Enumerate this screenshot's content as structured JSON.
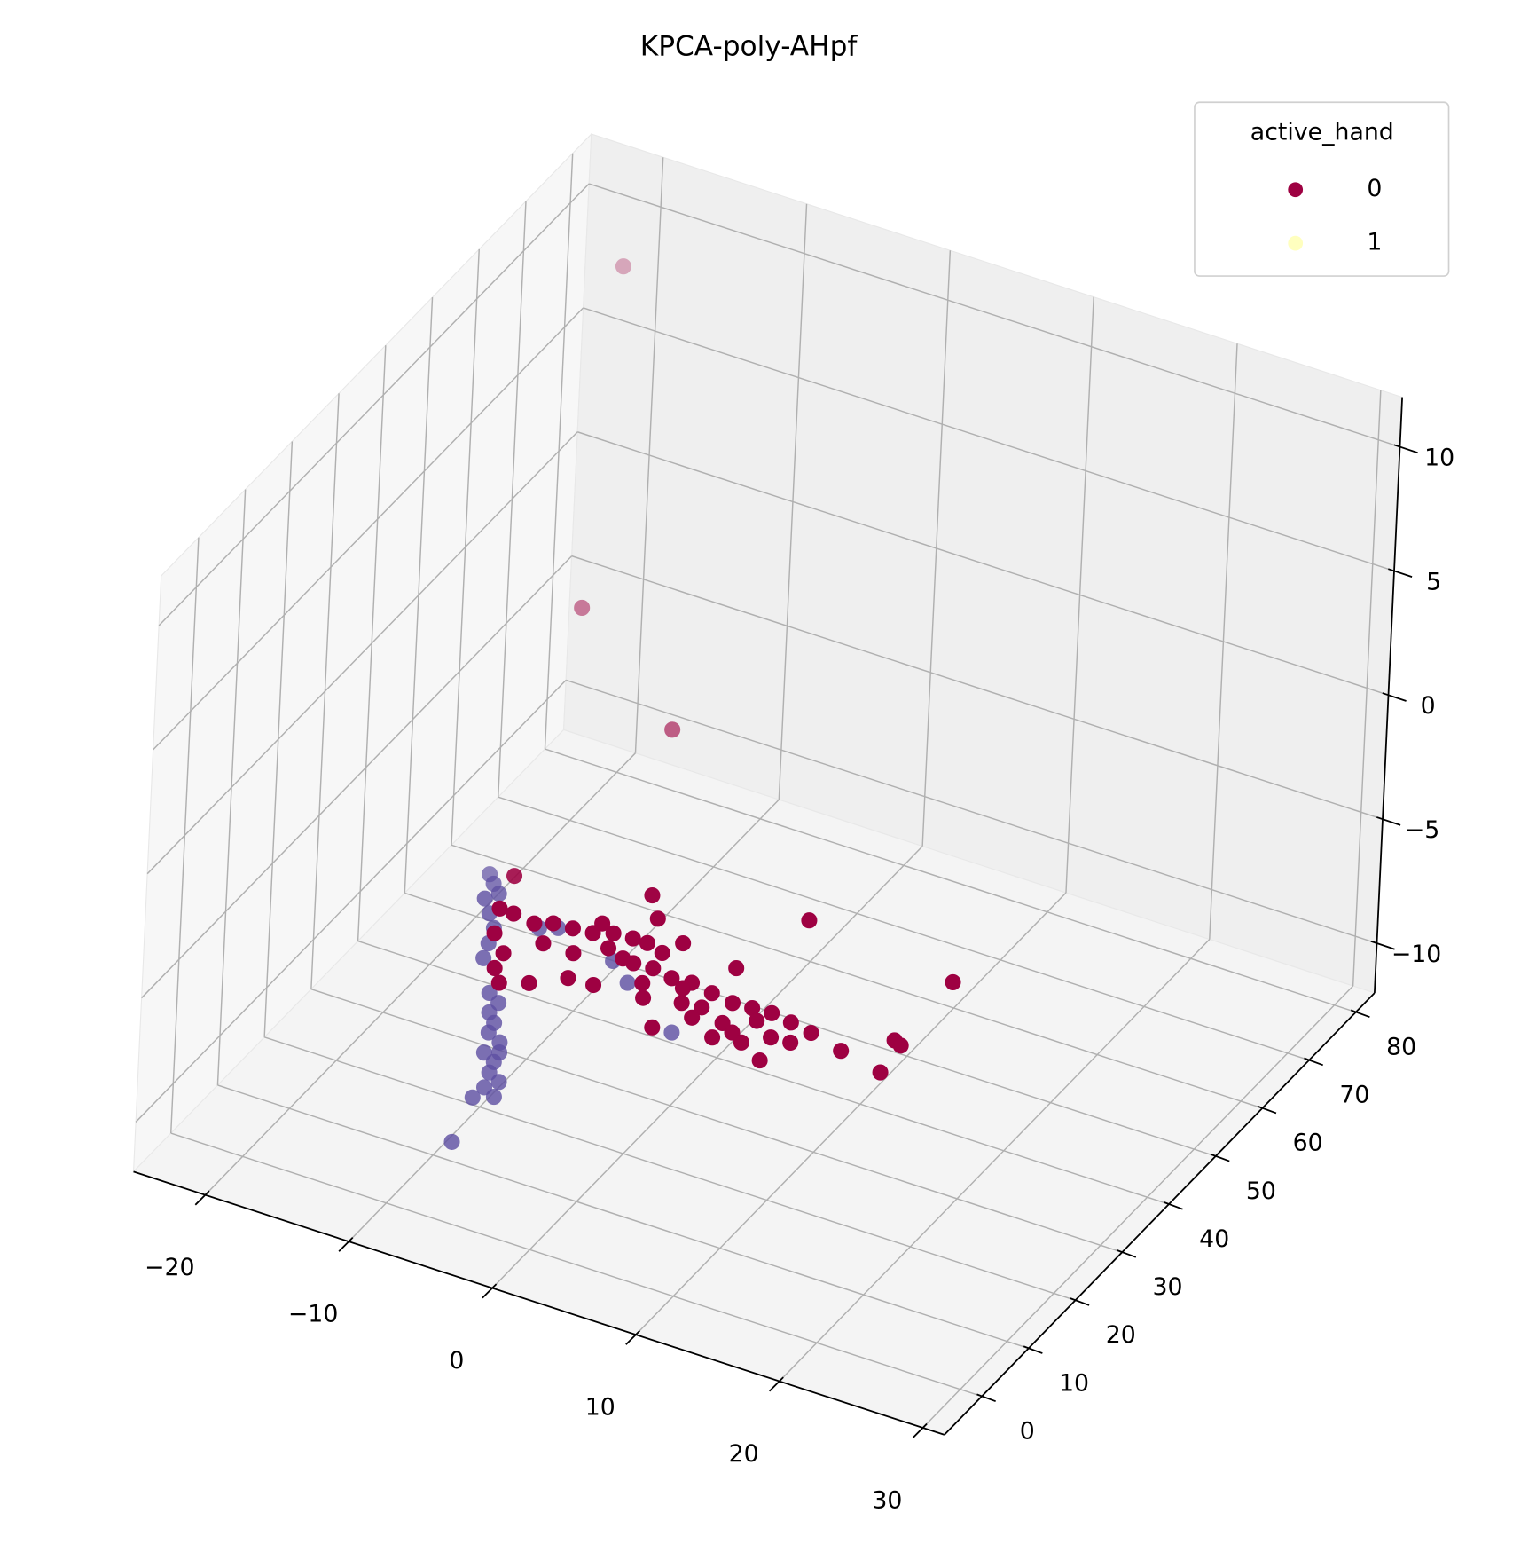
{
  "chart_data": {
    "type": "scatter3d",
    "title": "KPCA-poly-AHpf",
    "legend_title": "active_hand",
    "legend_loc": "upper right",
    "grid": true,
    "xlim": [
      -25,
      31.5
    ],
    "ylim": [
      -8,
      84
    ],
    "zlim": [
      -12,
      12
    ],
    "xticks": [
      {
        "value": -20,
        "label": "−20"
      },
      {
        "value": -10,
        "label": "−10"
      },
      0,
      10,
      20,
      30
    ],
    "yticks": [
      0,
      10,
      20,
      30,
      40,
      50,
      60,
      70,
      80
    ],
    "zticks": [
      {
        "value": -10,
        "label": "−10"
      },
      {
        "value": -5,
        "label": "−5"
      },
      0,
      5,
      10
    ],
    "series": [
      {
        "name": "0",
        "color": "#9e0142",
        "x": [
          -15.2,
          -14.3,
          -13.3,
          -13.3,
          -11.8,
          -11.5,
          -10.5,
          -8.9,
          -11.7,
          -10.7,
          -9.4,
          -8.1,
          -7.0,
          -5.7,
          -4.7,
          -4.4,
          -3.1,
          -1.6,
          -0.3,
          1.3,
          2.9,
          4.2,
          5.5,
          7.0,
          8.6,
          11.1,
          14.3,
          13.4,
          14.0,
          -5.4,
          -8.1,
          -7.1,
          -5.4,
          -0.1,
          1.5,
          4.4,
          7.3,
          3.6,
          -0.5,
          -2.9,
          -5.2,
          -3.4,
          -2.8,
          1.3,
          5.1,
          6.7,
          8.0,
          -6.9,
          2.7,
          13.5,
          -10.2,
          -8.1,
          -6.5,
          -2.1,
          1.5,
          3.4,
          5.4,
          0.2,
          -17.7,
          -15.7,
          -9.5
        ],
        "y": [
          42.4,
          36.5,
          36.4,
          32.3,
          29.6,
          26.8,
          24.7,
          26.2,
          35.9,
          36.9,
          37.1,
          37.4,
          38.4,
          38.6,
          38.6,
          34.7,
          34.9,
          34.3,
          34.6,
          34.0,
          33.5,
          33.7,
          33.9,
          33.4,
          32.8,
          31.5,
          30.1,
          35.9,
          35.4,
          43.0,
          39.4,
          29.0,
          29.2,
          25.5,
          29.1,
          28.8,
          25.8,
          27.0,
          33.3,
          32.0,
          34.9,
          37.8,
          40.4,
          39.2,
          31.9,
          30.0,
          30.2,
          46.4,
          50.5,
          48.1,
          33.2,
          33.2,
          35.8,
          29.7,
          31.2,
          29.8,
          27.7,
          30.9,
          68.7,
          56.4,
          57.7
        ],
        "z": [
          -8,
          -8,
          -8,
          -8,
          -8,
          -8,
          -8,
          -8,
          -8,
          -8,
          -8,
          -8,
          -8,
          -8,
          -8,
          -8,
          -8,
          -8,
          -8,
          -8,
          -8,
          -8,
          -8,
          -8,
          -8,
          -8,
          -8,
          -8,
          -8,
          -8,
          -8,
          -8,
          -8,
          -8,
          -8,
          -8,
          -8,
          -8,
          -8,
          -8,
          -8,
          -8,
          -8,
          -8,
          -8,
          -8,
          -8,
          -8,
          -8,
          -8,
          -8,
          -8,
          -8,
          -8,
          -8,
          -8,
          -8,
          -8,
          11,
          0,
          -4
        ]
      },
      {
        "name": "1",
        "color": "#5e4fa2",
        "legend_color": "#ffffbf",
        "x": [
          -16.6,
          -15.9,
          -15.6,
          -15.1,
          -14.6,
          -13.6,
          -13.1,
          -12.6,
          -8.7,
          -8.5,
          -7.4,
          -7.7,
          -6.7,
          -6.4,
          -5.4,
          -5.9,
          -4.9,
          -6.0,
          -9.5,
          -6.9,
          -4.8,
          -11.2,
          -10.2,
          -5.6,
          -3.7,
          1.2,
          -10.5,
          -9.5
        ],
        "y": [
          41.4,
          40.1,
          37.3,
          38.8,
          35.2,
          33.1,
          30.4,
          27.8,
          18.1,
          16.3,
          15.3,
          12.9,
          11.9,
          10.0,
          9.0,
          7.4,
          6.4,
          5.2,
          19.5,
          13.7,
          -2.9,
          35.4,
          36.4,
          34.0,
          31.3,
          25.7,
          22.6,
          21.5
        ],
        "z": [
          -8,
          -8,
          -8,
          -8,
          -8,
          -8,
          -8,
          -8,
          -8,
          -8,
          -8,
          -8,
          -8,
          -8,
          -8,
          -8,
          -8,
          -8,
          -8,
          -8,
          -8,
          -8,
          -8,
          -8,
          -8,
          -8,
          -8,
          -8
        ]
      }
    ]
  }
}
